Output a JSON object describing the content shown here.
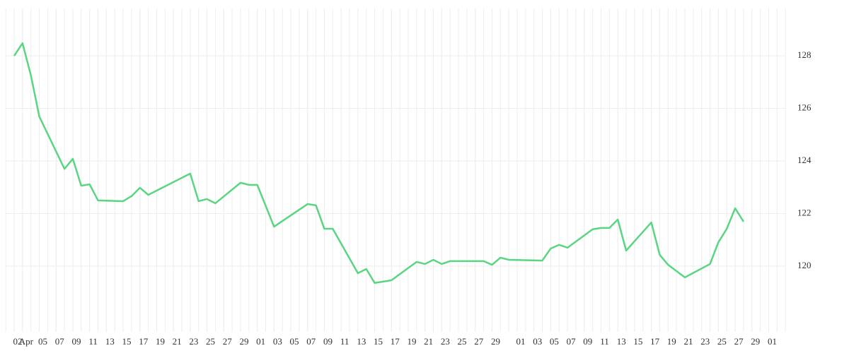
{
  "chart_data": {
    "type": "line",
    "x": [
      "04-02",
      "04-03",
      "04-04",
      "04-05",
      "04-08",
      "04-09",
      "04-10",
      "04-11",
      "04-12",
      "04-15",
      "04-16",
      "04-17",
      "04-18",
      "04-23",
      "04-24",
      "04-25",
      "04-26",
      "04-29",
      "04-30",
      "05-01",
      "05-03",
      "05-07",
      "05-08",
      "05-09",
      "05-10",
      "05-13",
      "05-14",
      "05-15",
      "05-17",
      "05-20",
      "05-21",
      "05-22",
      "05-23",
      "05-24",
      "05-28",
      "05-29",
      "05-30",
      "05-31",
      "06-04",
      "06-05",
      "06-06",
      "06-07",
      "06-10",
      "06-11",
      "06-12",
      "06-13",
      "06-14",
      "06-17",
      "06-18",
      "06-19",
      "06-21",
      "06-24",
      "06-25",
      "06-26",
      "06-27",
      "06-28"
    ],
    "series": [
      {
        "color": "#5ad582",
        "values": [
          128.0,
          128.48,
          127.25,
          125.69,
          123.7,
          124.08,
          123.06,
          123.11,
          122.5,
          122.47,
          122.66,
          122.98,
          122.71,
          123.52,
          122.47,
          122.55,
          122.39,
          123.17,
          123.09,
          123.09,
          121.5,
          122.36,
          122.31,
          121.42,
          121.42,
          119.73,
          119.89,
          119.36,
          119.46,
          120.16,
          120.08,
          120.24,
          120.08,
          120.19,
          120.19,
          120.05,
          120.32,
          120.24,
          120.21,
          120.67,
          120.81,
          120.7,
          121.4,
          121.45,
          121.45,
          121.77,
          120.59,
          121.66,
          120.43,
          120.05,
          119.57,
          120.08,
          120.91,
          121.42,
          122.2,
          121.69
        ]
      }
    ],
    "xlim": [
      "04-01",
      "07-03"
    ],
    "xticks": [
      {
        "value": "04-02",
        "label": "02"
      },
      {
        "value": "04-03",
        "label": "Apr"
      },
      {
        "value": "04-05",
        "label": "05"
      },
      {
        "value": "04-07",
        "label": "07"
      },
      {
        "value": "04-09",
        "label": "09"
      },
      {
        "value": "04-11",
        "label": "11"
      },
      {
        "value": "04-13",
        "label": "13"
      },
      {
        "value": "04-15",
        "label": "15"
      },
      {
        "value": "04-17",
        "label": "17"
      },
      {
        "value": "04-19",
        "label": "19"
      },
      {
        "value": "04-21",
        "label": "21"
      },
      {
        "value": "04-23",
        "label": "23"
      },
      {
        "value": "04-25",
        "label": "25"
      },
      {
        "value": "04-27",
        "label": "27"
      },
      {
        "value": "04-29",
        "label": "29"
      },
      {
        "value": "05-01",
        "label": "01"
      },
      {
        "value": "05-03",
        "label": "03"
      },
      {
        "value": "05-05",
        "label": "05"
      },
      {
        "value": "05-07",
        "label": "07"
      },
      {
        "value": "05-09",
        "label": "09"
      },
      {
        "value": "05-11",
        "label": "11"
      },
      {
        "value": "05-13",
        "label": "13"
      },
      {
        "value": "05-15",
        "label": "15"
      },
      {
        "value": "05-17",
        "label": "17"
      },
      {
        "value": "05-19",
        "label": "19"
      },
      {
        "value": "05-21",
        "label": "21"
      },
      {
        "value": "05-23",
        "label": "23"
      },
      {
        "value": "05-25",
        "label": "25"
      },
      {
        "value": "05-27",
        "label": "27"
      },
      {
        "value": "05-29",
        "label": "29"
      },
      {
        "value": "06-01",
        "label": "01"
      },
      {
        "value": "06-03",
        "label": "03"
      },
      {
        "value": "06-05",
        "label": "05"
      },
      {
        "value": "06-07",
        "label": "07"
      },
      {
        "value": "06-09",
        "label": "09"
      },
      {
        "value": "06-11",
        "label": "11"
      },
      {
        "value": "06-13",
        "label": "13"
      },
      {
        "value": "06-15",
        "label": "15"
      },
      {
        "value": "06-17",
        "label": "17"
      },
      {
        "value": "06-19",
        "label": "19"
      },
      {
        "value": "06-21",
        "label": "21"
      },
      {
        "value": "06-23",
        "label": "23"
      },
      {
        "value": "06-25",
        "label": "25"
      },
      {
        "value": "06-27",
        "label": "27"
      },
      {
        "value": "06-29",
        "label": "29"
      },
      {
        "value": "07-01",
        "label": "01"
      }
    ],
    "ylim": [
      117.5,
      129.8
    ],
    "yticks": [
      120,
      122,
      124,
      126,
      128
    ],
    "grid": true
  }
}
